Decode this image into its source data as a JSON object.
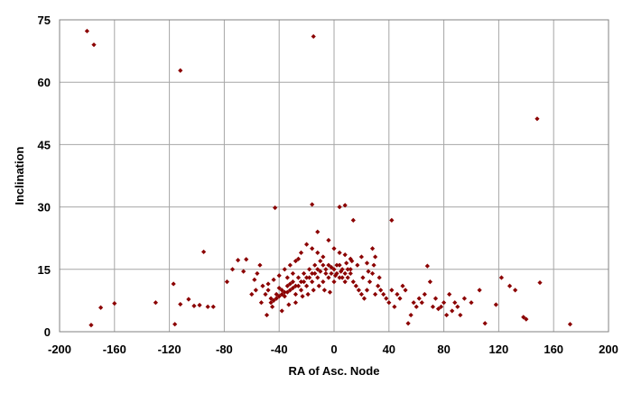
{
  "chart_data": {
    "type": "scatter",
    "title": "",
    "xlabel": "RA of Asc. Node",
    "ylabel": "Inclination",
    "xlim": [
      -200,
      200
    ],
    "ylim": [
      0,
      75
    ],
    "xticks": [
      "-200",
      "-160",
      "-120",
      "-80",
      "-40",
      "0",
      "40",
      "80",
      "120",
      "160",
      "200"
    ],
    "yticks": [
      "0",
      "15",
      "30",
      "45",
      "60",
      "75"
    ],
    "grid": true,
    "marker": "diamond",
    "marker_color": "#8b0000",
    "points": [
      [
        -180,
        72.3
      ],
      [
        -175,
        69
      ],
      [
        -112,
        62.8
      ],
      [
        -15,
        71
      ],
      [
        148,
        51.2
      ],
      [
        -43,
        29.8
      ],
      [
        -16,
        30.6
      ],
      [
        4,
        30
      ],
      [
        8,
        30.4
      ],
      [
        42,
        26.8
      ],
      [
        14,
        26.8
      ],
      [
        -12,
        24
      ],
      [
        -177,
        1.6
      ],
      [
        -170,
        5.8
      ],
      [
        -160,
        6.8
      ],
      [
        -130,
        7
      ],
      [
        -117,
        11.5
      ],
      [
        -116,
        1.8
      ],
      [
        -112,
        6.6
      ],
      [
        -106,
        7.8
      ],
      [
        -102,
        6.2
      ],
      [
        -98,
        6.4
      ],
      [
        -95,
        19.2
      ],
      [
        -92,
        6
      ],
      [
        -88,
        6
      ],
      [
        -78,
        12
      ],
      [
        -74,
        15
      ],
      [
        -70,
        17.2
      ],
      [
        -66,
        14.5
      ],
      [
        -64,
        17.4
      ],
      [
        -58,
        12.5
      ],
      [
        -56,
        14
      ],
      [
        -54,
        16
      ],
      [
        -52,
        11
      ],
      [
        -50,
        9
      ],
      [
        -48,
        10
      ],
      [
        -46,
        8
      ],
      [
        -44,
        7.5
      ],
      [
        -42,
        9
      ],
      [
        -40,
        8.5
      ],
      [
        -38,
        10
      ],
      [
        -36,
        9.5
      ],
      [
        -34,
        11
      ],
      [
        -32,
        10
      ],
      [
        -30,
        12
      ],
      [
        -28,
        11
      ],
      [
        -26,
        13
      ],
      [
        -24,
        12
      ],
      [
        -22,
        14
      ],
      [
        -20,
        13
      ],
      [
        -18,
        15
      ],
      [
        -16,
        14
      ],
      [
        -14,
        16
      ],
      [
        -12,
        15
      ],
      [
        -10,
        17
      ],
      [
        -8,
        16
      ],
      [
        -6,
        15
      ],
      [
        -4,
        16
      ],
      [
        -2,
        14
      ],
      [
        0,
        15
      ],
      [
        2,
        14
      ],
      [
        4,
        13
      ],
      [
        6,
        15
      ],
      [
        8,
        14
      ],
      [
        10,
        13
      ],
      [
        12,
        14
      ],
      [
        14,
        12
      ],
      [
        16,
        11
      ],
      [
        18,
        10
      ],
      [
        20,
        9
      ],
      [
        22,
        8
      ],
      [
        24,
        10
      ],
      [
        26,
        12
      ],
      [
        28,
        14
      ],
      [
        30,
        9
      ],
      [
        32,
        11
      ],
      [
        34,
        10
      ],
      [
        36,
        9
      ],
      [
        38,
        8
      ],
      [
        40,
        7
      ],
      [
        42,
        10
      ],
      [
        44,
        6
      ],
      [
        46,
        9
      ],
      [
        48,
        8
      ],
      [
        50,
        11
      ],
      [
        52,
        10
      ],
      [
        54,
        2
      ],
      [
        56,
        4
      ],
      [
        58,
        7
      ],
      [
        60,
        6
      ],
      [
        62,
        8
      ],
      [
        64,
        7
      ],
      [
        66,
        9
      ],
      [
        68,
        15.8
      ],
      [
        70,
        12
      ],
      [
        72,
        6
      ],
      [
        74,
        8
      ],
      [
        76,
        5.5
      ],
      [
        78,
        6
      ],
      [
        80,
        7
      ],
      [
        82,
        4
      ],
      [
        84,
        9
      ],
      [
        86,
        5
      ],
      [
        88,
        7
      ],
      [
        90,
        6
      ],
      [
        92,
        4
      ],
      [
        95,
        8
      ],
      [
        100,
        7
      ],
      [
        106,
        10
      ],
      [
        110,
        2
      ],
      [
        118,
        6.5
      ],
      [
        122,
        13
      ],
      [
        128,
        11
      ],
      [
        132,
        10
      ],
      [
        138,
        3.5
      ],
      [
        140,
        3
      ],
      [
        150,
        11.8
      ],
      [
        172,
        1.8
      ],
      [
        -46,
        7
      ],
      [
        -42,
        8
      ],
      [
        -38,
        9
      ],
      [
        -34,
        9.5
      ],
      [
        -30,
        10.5
      ],
      [
        -26,
        11
      ],
      [
        -22,
        12
      ],
      [
        -18,
        13
      ],
      [
        -14,
        14
      ],
      [
        -10,
        14.5
      ],
      [
        -6,
        14
      ],
      [
        -2,
        15.5
      ],
      [
        2,
        16
      ],
      [
        6,
        13
      ],
      [
        10,
        15
      ],
      [
        -40,
        10.5
      ],
      [
        -36,
        8.5
      ],
      [
        -32,
        11.5
      ],
      [
        -28,
        9
      ],
      [
        -24,
        10
      ],
      [
        -20,
        11
      ],
      [
        -16,
        12
      ],
      [
        -12,
        13
      ],
      [
        -8,
        12
      ],
      [
        -4,
        13
      ],
      [
        0,
        12
      ],
      [
        4,
        16
      ],
      [
        8,
        12
      ],
      [
        12,
        15
      ],
      [
        -60,
        9
      ],
      [
        -57,
        10
      ],
      [
        -53,
        7
      ],
      [
        -49,
        4
      ],
      [
        -45,
        6
      ],
      [
        -38,
        5
      ],
      [
        -33,
        6.5
      ],
      [
        -28,
        7
      ],
      [
        -23,
        8.5
      ],
      [
        -19,
        9
      ],
      [
        -15,
        10
      ],
      [
        -11,
        11
      ],
      [
        -7,
        10
      ],
      [
        -3,
        9.5
      ],
      [
        1,
        13.5
      ],
      [
        5,
        14.5
      ],
      [
        9,
        16.5
      ],
      [
        13,
        17
      ],
      [
        17,
        16
      ],
      [
        21,
        13
      ],
      [
        25,
        14.5
      ],
      [
        29,
        16
      ],
      [
        33,
        13
      ],
      [
        -20,
        21
      ],
      [
        -16,
        20
      ],
      [
        -12,
        19
      ],
      [
        -8,
        18
      ],
      [
        -4,
        22
      ],
      [
        0,
        20
      ],
      [
        4,
        19
      ],
      [
        8,
        18.5
      ],
      [
        12,
        17.5
      ],
      [
        20,
        18
      ],
      [
        24,
        16.5
      ],
      [
        28,
        20
      ],
      [
        30,
        18
      ],
      [
        -24,
        19
      ],
      [
        -28,
        17
      ],
      [
        -32,
        16
      ],
      [
        -36,
        15
      ],
      [
        -40,
        13.5
      ],
      [
        -44,
        12.5
      ],
      [
        -48,
        11.5
      ],
      [
        -26,
        17.5
      ],
      [
        -30,
        14
      ],
      [
        -34,
        13
      ]
    ]
  }
}
